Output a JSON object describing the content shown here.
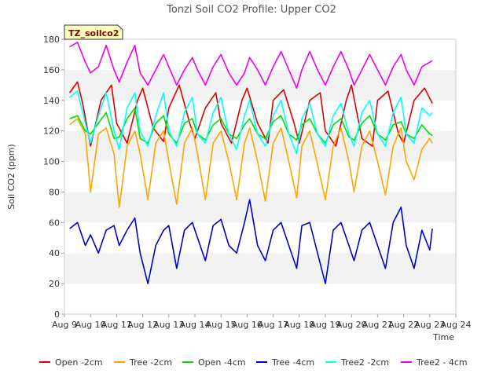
{
  "chart_data": {
    "type": "line",
    "title": "Tonzi Soil CO2 Profile: Upper CO2",
    "xlabel": "Time",
    "ylabel": "Soil CO2 (ppm)",
    "ylim": [
      0,
      180
    ],
    "xlim": [
      9,
      24
    ],
    "y_ticks": [
      0,
      20,
      40,
      60,
      80,
      100,
      120,
      140,
      160,
      180
    ],
    "x_ticks": [
      {
        "value": 9,
        "label": "Aug 9"
      },
      {
        "value": 10,
        "label": "Aug 10"
      },
      {
        "value": 11,
        "label": "Aug 11"
      },
      {
        "value": 12,
        "label": "Aug 12"
      },
      {
        "value": 13,
        "label": "Aug 13"
      },
      {
        "value": 14,
        "label": "Aug 14"
      },
      {
        "value": 15,
        "label": "Aug 15"
      },
      {
        "value": 16,
        "label": "Aug 16"
      },
      {
        "value": 17,
        "label": "Aug 17"
      },
      {
        "value": 18,
        "label": "Aug 18"
      },
      {
        "value": 19,
        "label": "Aug 19"
      },
      {
        "value": 20,
        "label": "Aug 20"
      },
      {
        "value": 21,
        "label": "Aug 21"
      },
      {
        "value": 22,
        "label": "Aug 22"
      },
      {
        "value": 23,
        "label": "Aug 23"
      },
      {
        "value": 24,
        "label": "Aug 24"
      }
    ],
    "grid": "horizontal bands",
    "legend_placement": "bottom",
    "badge": "TZ_soilco2",
    "series": [
      {
        "name": "Open -2cm",
        "color": "#dd0000",
        "x": [
          9.2,
          9.5,
          9.7,
          10.0,
          10.4,
          10.8,
          11.0,
          11.4,
          11.8,
          12.0,
          12.4,
          12.8,
          13.0,
          13.4,
          13.8,
          14.0,
          14.4,
          14.8,
          15.0,
          15.4,
          15.8,
          16.0,
          16.4,
          16.8,
          17.0,
          17.4,
          17.8,
          18.0,
          18.4,
          18.8,
          19.0,
          19.4,
          19.8,
          20.0,
          20.4,
          20.8,
          21.0,
          21.4,
          21.8,
          22.0,
          22.4,
          22.8,
          23.1
        ],
        "y": [
          145,
          152,
          138,
          110,
          140,
          150,
          125,
          112,
          140,
          148,
          122,
          113,
          135,
          150,
          125,
          115,
          135,
          145,
          125,
          112,
          140,
          148,
          125,
          112,
          140,
          147,
          125,
          112,
          140,
          145,
          120,
          110,
          140,
          150,
          115,
          110,
          140,
          146,
          118,
          112,
          140,
          148,
          138
        ]
      },
      {
        "name": "Tree -2cm",
        "color": "#ffa500",
        "x": [
          9.2,
          9.5,
          9.8,
          10.0,
          10.3,
          10.6,
          10.9,
          11.1,
          11.4,
          11.7,
          11.9,
          12.2,
          12.5,
          12.8,
          13.0,
          13.3,
          13.6,
          13.9,
          14.1,
          14.4,
          14.7,
          15.0,
          15.3,
          15.6,
          15.9,
          16.1,
          16.4,
          16.7,
          17.0,
          17.3,
          17.6,
          17.9,
          18.1,
          18.4,
          18.7,
          19.0,
          19.3,
          19.6,
          19.9,
          20.1,
          20.4,
          20.7,
          21.0,
          21.3,
          21.6,
          21.9,
          22.1,
          22.4,
          22.7,
          23.0,
          23.1
        ],
        "y": [
          124,
          128,
          118,
          80,
          118,
          122,
          105,
          70,
          110,
          120,
          105,
          75,
          112,
          120,
          100,
          72,
          112,
          122,
          105,
          75,
          112,
          120,
          100,
          75,
          112,
          122,
          100,
          74,
          112,
          122,
          100,
          76,
          110,
          120,
          98,
          75,
          110,
          122,
          100,
          80,
          110,
          120,
          100,
          78,
          110,
          122,
          100,
          88,
          108,
          115,
          112
        ]
      },
      {
        "name": "Open -4cm",
        "color": "#00dd00",
        "x": [
          9.2,
          9.5,
          9.8,
          10.0,
          10.3,
          10.6,
          10.9,
          11.1,
          11.4,
          11.7,
          11.9,
          12.2,
          12.5,
          12.8,
          13.0,
          13.3,
          13.6,
          13.9,
          14.1,
          14.4,
          14.7,
          15.0,
          15.3,
          15.6,
          15.9,
          16.1,
          16.4,
          16.7,
          17.0,
          17.3,
          17.6,
          17.9,
          18.1,
          18.4,
          18.7,
          19.0,
          19.3,
          19.6,
          19.9,
          20.1,
          20.4,
          20.7,
          21.0,
          21.3,
          21.6,
          21.9,
          22.1,
          22.4,
          22.7,
          23.0,
          23.1
        ],
        "y": [
          128,
          130,
          120,
          118,
          125,
          132,
          115,
          116,
          128,
          135,
          115,
          112,
          125,
          130,
          118,
          112,
          125,
          128,
          118,
          114,
          124,
          128,
          118,
          115,
          124,
          128,
          118,
          115,
          126,
          130,
          118,
          114,
          124,
          128,
          118,
          112,
          124,
          128,
          116,
          114,
          125,
          130,
          118,
          114,
          124,
          126,
          118,
          115,
          124,
          118,
          117
        ]
      },
      {
        "name": "Tree -4cm",
        "color": "#0000cc",
        "x": [
          9.2,
          9.5,
          9.8,
          10.0,
          10.3,
          10.6,
          10.9,
          11.1,
          11.4,
          11.7,
          11.9,
          12.2,
          12.5,
          12.8,
          13.0,
          13.3,
          13.6,
          13.9,
          14.1,
          14.4,
          14.7,
          15.0,
          15.3,
          15.6,
          15.9,
          16.1,
          16.4,
          16.7,
          17.0,
          17.3,
          17.6,
          17.9,
          18.1,
          18.4,
          18.7,
          19.0,
          19.3,
          19.6,
          19.9,
          20.1,
          20.4,
          20.7,
          21.0,
          21.3,
          21.6,
          21.9,
          22.1,
          22.4,
          22.7,
          23.0,
          23.1
        ],
        "y": [
          56,
          60,
          45,
          52,
          40,
          55,
          58,
          45,
          55,
          63,
          40,
          20,
          45,
          55,
          58,
          30,
          55,
          60,
          50,
          35,
          58,
          62,
          45,
          40,
          60,
          75,
          45,
          35,
          55,
          60,
          45,
          30,
          58,
          60,
          40,
          20,
          55,
          60,
          45,
          35,
          55,
          60,
          45,
          30,
          60,
          70,
          45,
          30,
          55,
          42,
          56
        ]
      },
      {
        "name": "Tree2 -2cm",
        "color": "#00ffff",
        "x": [
          9.2,
          9.5,
          9.8,
          10.0,
          10.3,
          10.6,
          10.9,
          11.1,
          11.4,
          11.7,
          11.9,
          12.2,
          12.5,
          12.8,
          13.0,
          13.3,
          13.6,
          13.9,
          14.1,
          14.4,
          14.7,
          15.0,
          15.3,
          15.6,
          15.9,
          16.1,
          16.4,
          16.7,
          17.0,
          17.3,
          17.6,
          17.9,
          18.1,
          18.4,
          18.7,
          19.0,
          19.3,
          19.6,
          19.9,
          20.1,
          20.4,
          20.7,
          21.0,
          21.3,
          21.6,
          21.9,
          22.1,
          22.4,
          22.7,
          23.0,
          23.1
        ],
        "y": [
          142,
          146,
          125,
          112,
          130,
          145,
          120,
          108,
          135,
          145,
          120,
          110,
          130,
          145,
          120,
          110,
          132,
          142,
          118,
          112,
          132,
          142,
          118,
          108,
          130,
          140,
          118,
          110,
          130,
          140,
          118,
          105,
          128,
          138,
          118,
          110,
          130,
          138,
          118,
          110,
          132,
          140,
          118,
          110,
          132,
          142,
          118,
          112,
          135,
          130,
          132
        ]
      },
      {
        "name": "Tree2 - 4cm",
        "color": "#ee00ee",
        "x": [
          9.2,
          9.5,
          9.8,
          10.0,
          10.3,
          10.6,
          10.9,
          11.1,
          11.4,
          11.7,
          11.9,
          12.2,
          12.5,
          12.8,
          13.0,
          13.3,
          13.6,
          13.9,
          14.1,
          14.4,
          14.7,
          15.0,
          15.3,
          15.6,
          15.9,
          16.1,
          16.4,
          16.7,
          17.0,
          17.3,
          17.6,
          17.9,
          18.1,
          18.4,
          18.7,
          19.0,
          19.3,
          19.6,
          19.9,
          20.1,
          20.4,
          20.7,
          21.0,
          21.3,
          21.6,
          21.9,
          22.1,
          22.4,
          22.7,
          23.0,
          23.1
        ],
        "y": [
          175,
          178,
          165,
          158,
          162,
          176,
          160,
          152,
          165,
          176,
          158,
          150,
          160,
          170,
          162,
          150,
          160,
          168,
          160,
          150,
          162,
          170,
          158,
          150,
          158,
          168,
          160,
          150,
          162,
          172,
          160,
          148,
          160,
          172,
          160,
          150,
          162,
          172,
          160,
          150,
          160,
          170,
          160,
          150,
          162,
          170,
          160,
          150,
          162,
          165,
          166
        ]
      }
    ]
  }
}
